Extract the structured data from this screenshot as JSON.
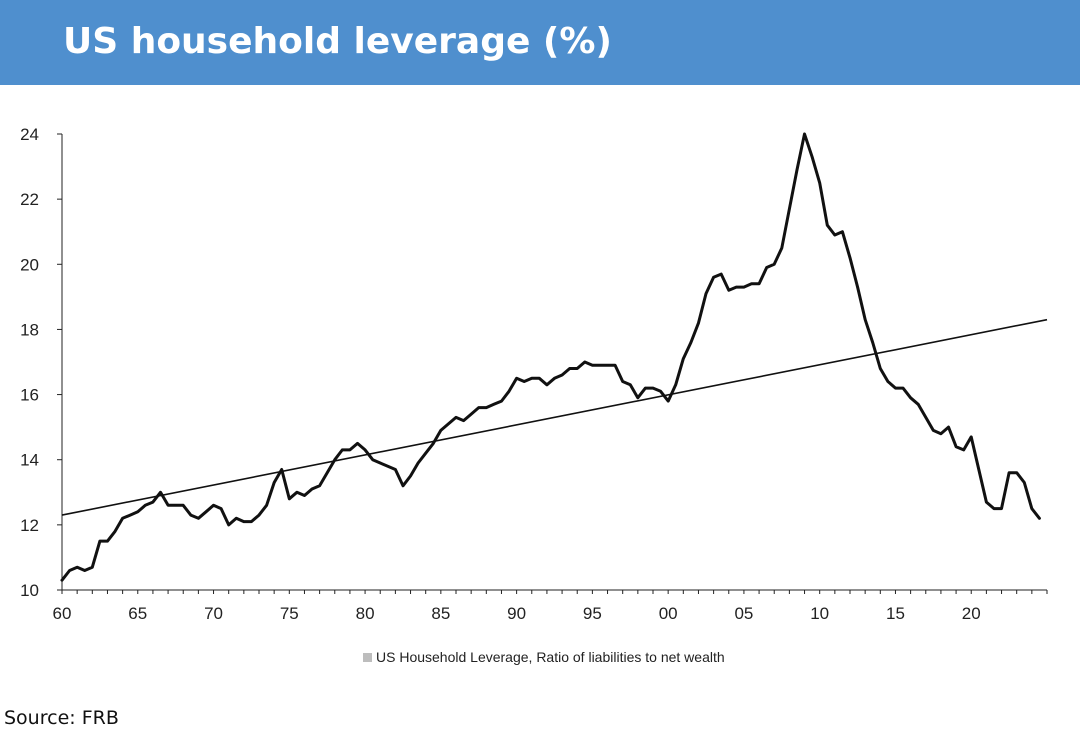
{
  "header": {
    "title": "US household leverage (%)"
  },
  "source": "Source: FRB",
  "colors": {
    "header_bg": "#4f8fce",
    "series": "#111111",
    "trend": "#111111",
    "legend_swatch": "#bdbdbd"
  },
  "chart_data": {
    "type": "line",
    "title": "US household leverage (%)",
    "xlabel": "",
    "ylabel": "",
    "xlim": [
      1960,
      2025
    ],
    "ylim": [
      10,
      24
    ],
    "grid": false,
    "legend": "bottom-center",
    "x_ticks": [
      1960,
      1965,
      1970,
      1975,
      1980,
      1985,
      1990,
      1995,
      2000,
      2005,
      2010,
      2015,
      2020
    ],
    "x_tick_labels": [
      "60",
      "65",
      "70",
      "75",
      "80",
      "85",
      "90",
      "95",
      "00",
      "05",
      "10",
      "15",
      "20"
    ],
    "y_ticks": [
      10,
      12,
      14,
      16,
      18,
      20,
      22,
      24
    ],
    "y_tick_labels": [
      "10",
      "12",
      "14",
      "16",
      "18",
      "20",
      "22",
      "24"
    ],
    "series": [
      {
        "name": "US Household Leverage, Ratio of liabilities to net wealth",
        "x": [
          1960,
          1960.5,
          1961,
          1961.5,
          1962,
          1962.5,
          1963,
          1963.5,
          1964,
          1964.5,
          1965,
          1965.5,
          1966,
          1966.5,
          1967,
          1967.5,
          1968,
          1968.5,
          1969,
          1969.5,
          1970,
          1970.5,
          1971,
          1971.5,
          1972,
          1972.5,
          1973,
          1973.5,
          1974,
          1974.5,
          1975,
          1975.5,
          1976,
          1976.5,
          1977,
          1977.5,
          1978,
          1978.5,
          1979,
          1979.5,
          1980,
          1980.5,
          1981,
          1981.5,
          1982,
          1982.5,
          1983,
          1983.5,
          1984,
          1984.5,
          1985,
          1985.5,
          1986,
          1986.5,
          1987,
          1987.5,
          1988,
          1988.5,
          1989,
          1989.5,
          1990,
          1990.5,
          1991,
          1991.5,
          1992,
          1992.5,
          1993,
          1993.5,
          1994,
          1994.5,
          1995,
          1995.5,
          1996,
          1996.5,
          1997,
          1997.5,
          1998,
          1998.5,
          1999,
          1999.5,
          2000,
          2000.5,
          2001,
          2001.5,
          2002,
          2002.5,
          2003,
          2003.5,
          2004,
          2004.5,
          2005,
          2005.5,
          2006,
          2006.5,
          2007,
          2007.5,
          2008,
          2008.5,
          2009,
          2009.5,
          2010,
          2010.5,
          2011,
          2011.5,
          2012,
          2012.5,
          2013,
          2013.5,
          2014,
          2014.5,
          2015,
          2015.5,
          2016,
          2016.5,
          2017,
          2017.5,
          2018,
          2018.5,
          2019,
          2019.5,
          2020,
          2020.5,
          2021,
          2021.5,
          2022,
          2022.5,
          2023,
          2023.5,
          2024,
          2024.5
        ],
        "values": [
          10.3,
          10.6,
          10.7,
          10.6,
          10.7,
          11.5,
          11.5,
          11.8,
          12.2,
          12.3,
          12.4,
          12.6,
          12.7,
          13.0,
          12.6,
          12.6,
          12.6,
          12.3,
          12.2,
          12.4,
          12.6,
          12.5,
          12.0,
          12.2,
          12.1,
          12.1,
          12.3,
          12.6,
          13.3,
          13.7,
          12.8,
          13.0,
          12.9,
          13.1,
          13.2,
          13.6,
          14.0,
          14.3,
          14.3,
          14.5,
          14.3,
          14.0,
          13.9,
          13.8,
          13.7,
          13.2,
          13.5,
          13.9,
          14.2,
          14.5,
          14.9,
          15.1,
          15.3,
          15.2,
          15.4,
          15.6,
          15.6,
          15.7,
          15.8,
          16.1,
          16.5,
          16.4,
          16.5,
          16.5,
          16.3,
          16.5,
          16.6,
          16.8,
          16.8,
          17.0,
          16.9,
          16.9,
          16.9,
          16.9,
          16.4,
          16.3,
          15.9,
          16.2,
          16.2,
          16.1,
          15.8,
          16.3,
          17.1,
          17.6,
          18.2,
          19.1,
          19.6,
          19.7,
          19.2,
          19.3,
          19.3,
          19.4,
          19.4,
          19.9,
          20.0,
          20.5,
          21.7,
          22.9,
          24.0,
          23.3,
          22.5,
          21.2,
          20.9,
          21.0,
          20.2,
          19.3,
          18.3,
          17.6,
          16.8,
          16.4,
          16.2,
          16.2,
          15.9,
          15.7,
          15.3,
          14.9,
          14.8,
          15.0,
          14.4,
          14.3,
          14.7,
          13.7,
          12.7,
          12.5,
          12.5,
          13.6,
          13.6,
          13.3,
          12.5,
          12.2
        ]
      },
      {
        "name": "",
        "x": [
          1960,
          2025
        ],
        "values": [
          12.3,
          18.3
        ]
      }
    ]
  }
}
